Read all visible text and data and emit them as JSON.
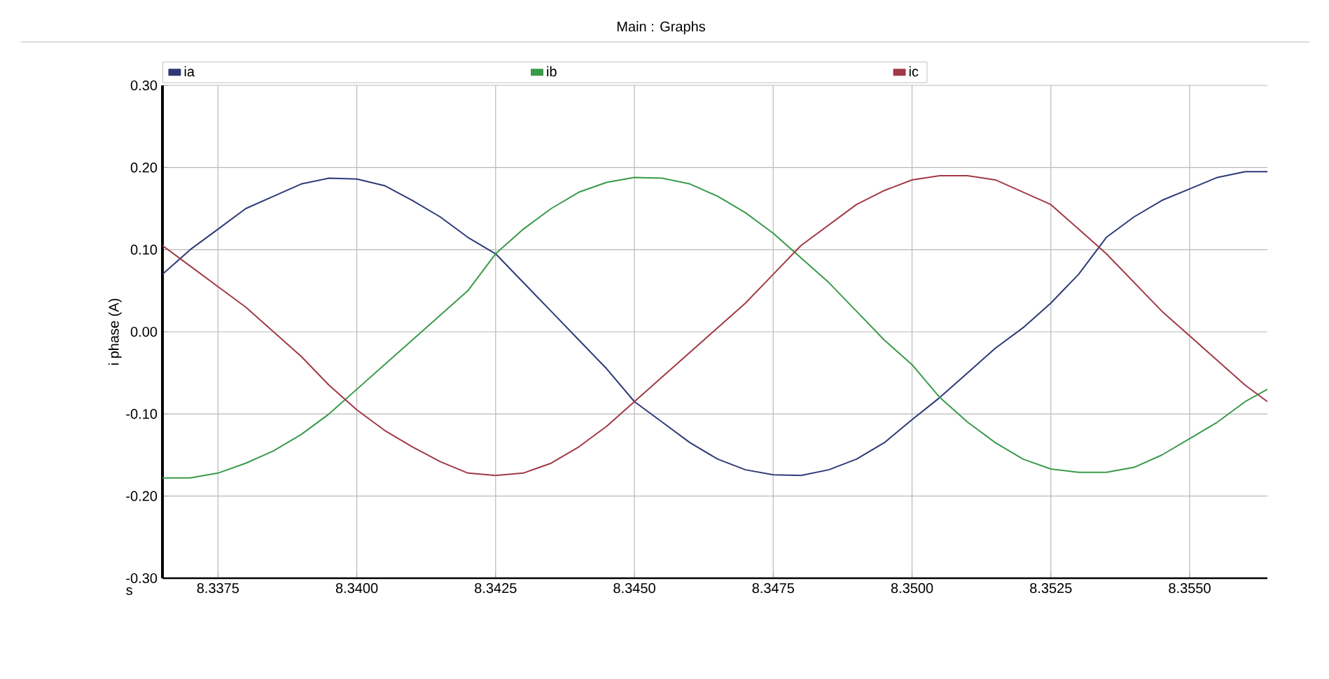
{
  "chart_data": {
    "type": "line",
    "title": "Main : Graphs",
    "xlabel": "s",
    "ylabel": "i phase (A)",
    "x": [
      8.3365,
      8.337,
      8.3375,
      8.338,
      8.3385,
      8.339,
      8.3395,
      8.34,
      8.3405,
      8.341,
      8.3415,
      8.342,
      8.3425,
      8.343,
      8.3435,
      8.344,
      8.3445,
      8.345,
      8.3455,
      8.346,
      8.3465,
      8.347,
      8.3475,
      8.348,
      8.3485,
      8.349,
      8.3495,
      8.35,
      8.3505,
      8.351,
      8.3515,
      8.352,
      8.3525,
      8.353,
      8.3535,
      8.354,
      8.3545,
      8.355,
      8.3555,
      8.356,
      8.3564
    ],
    "series": [
      {
        "name": "ia",
        "color": "#2e3a78",
        "values": [
          0.07,
          0.1,
          0.125,
          0.15,
          0.165,
          0.18,
          0.187,
          0.186,
          0.178,
          0.16,
          0.14,
          0.115,
          0.095,
          0.06,
          0.025,
          -0.01,
          -0.045,
          -0.085,
          -0.11,
          -0.135,
          -0.155,
          -0.168,
          -0.174,
          -0.175,
          -0.168,
          -0.155,
          -0.135,
          -0.107,
          -0.08,
          -0.05,
          -0.02,
          0.005,
          0.035,
          0.07,
          0.115,
          0.14,
          0.16,
          0.174,
          0.188,
          0.195,
          0.195
        ]
      },
      {
        "name": "ib",
        "color": "#3a9a4a",
        "values": [
          -0.178,
          -0.178,
          -0.172,
          -0.16,
          -0.145,
          -0.125,
          -0.1,
          -0.07,
          -0.04,
          -0.01,
          0.02,
          0.05,
          0.095,
          0.125,
          0.15,
          0.17,
          0.182,
          0.188,
          0.187,
          0.18,
          0.165,
          0.145,
          0.12,
          0.09,
          0.06,
          0.025,
          -0.01,
          -0.04,
          -0.08,
          -0.11,
          -0.135,
          -0.155,
          -0.167,
          -0.171,
          -0.171,
          -0.165,
          -0.15,
          -0.13,
          -0.11,
          -0.085,
          -0.07
        ]
      },
      {
        "name": "ic",
        "color": "#a03a46",
        "values": [
          0.105,
          0.08,
          0.055,
          0.03,
          0.0,
          -0.03,
          -0.065,
          -0.095,
          -0.12,
          -0.14,
          -0.158,
          -0.172,
          -0.175,
          -0.172,
          -0.16,
          -0.14,
          -0.115,
          -0.085,
          -0.055,
          -0.025,
          0.005,
          0.035,
          0.07,
          0.105,
          0.13,
          0.155,
          0.172,
          0.185,
          0.19,
          0.19,
          0.185,
          0.17,
          0.155,
          0.125,
          0.095,
          0.06,
          0.025,
          -0.005,
          -0.035,
          -0.065,
          -0.085
        ]
      }
    ],
    "xlim": [
      8.3365,
      8.3564
    ],
    "xticks": [
      {
        "value": 8.3375,
        "label": "8.3375"
      },
      {
        "value": 8.34,
        "label": "8.3400"
      },
      {
        "value": 8.3425,
        "label": "8.3425"
      },
      {
        "value": 8.345,
        "label": "8.3450"
      },
      {
        "value": 8.3475,
        "label": "8.3475"
      },
      {
        "value": 8.35,
        "label": "8.3500"
      },
      {
        "value": 8.3525,
        "label": "8.3525"
      },
      {
        "value": 8.355,
        "label": "8.3550"
      }
    ],
    "ylim": [
      -0.3,
      0.3
    ],
    "yticks": [
      {
        "value": -0.3,
        "label": "-0.30"
      },
      {
        "value": -0.2,
        "label": "-0.20"
      },
      {
        "value": -0.1,
        "label": "-0.10"
      },
      {
        "value": 0,
        "label": "0.00"
      },
      {
        "value": 0.1,
        "label": "0.10"
      },
      {
        "value": 0.2,
        "label": "0.20"
      },
      {
        "value": 0.3,
        "label": "0.30"
      }
    ],
    "grid": true,
    "legend": "top",
    "line_style": "solid",
    "marker": "none"
  }
}
